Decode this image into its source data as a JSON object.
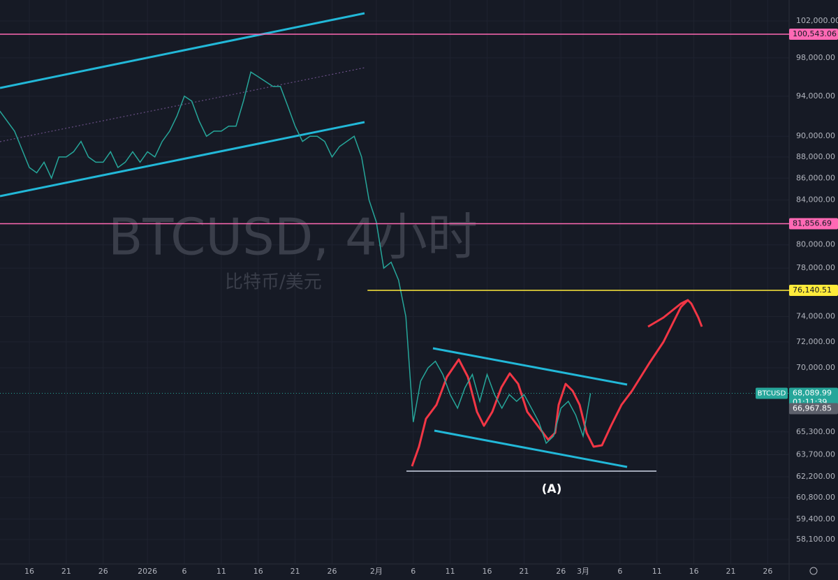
{
  "chart_data": {
    "type": "line",
    "title": "BTCUSD, 4小时",
    "subtitle": "比特币/美元",
    "annotation": "(A)",
    "log_scale": true,
    "grid": true,
    "ylim": [
      56580,
      104345
    ],
    "yticks": [
      {
        "value": 102000,
        "label": "102,000.00"
      },
      {
        "value": 98000,
        "label": "98,000.00"
      },
      {
        "value": 94000,
        "label": "94,000.00"
      },
      {
        "value": 90000,
        "label": "90,000.00"
      },
      {
        "value": 88000,
        "label": "88,000.00"
      },
      {
        "value": 86000,
        "label": "86,000.00"
      },
      {
        "value": 84000,
        "label": "84,000.00"
      },
      {
        "value": 80000,
        "label": "80,000.00"
      },
      {
        "value": 78000,
        "label": "78,000.00"
      },
      {
        "value": 74000,
        "label": "74,000.00"
      },
      {
        "value": 72000,
        "label": "72,000.00"
      },
      {
        "value": 70000,
        "label": "70,000.00"
      },
      {
        "value": 65300,
        "label": "65,300.00"
      },
      {
        "value": 63700,
        "label": "63,700.00"
      },
      {
        "value": 62200,
        "label": "62,200.00"
      },
      {
        "value": 60800,
        "label": "60,800.00"
      },
      {
        "value": 59400,
        "label": "59,400.00"
      },
      {
        "value": 58100,
        "label": "58,100.00"
      }
    ],
    "xlim": [
      -3.97,
      102.9
    ],
    "xticks": [
      {
        "value": 0,
        "label": "16"
      },
      {
        "value": 5,
        "label": "21"
      },
      {
        "value": 10,
        "label": "26"
      },
      {
        "value": 16,
        "label": "2026"
      },
      {
        "value": 21,
        "label": "6"
      },
      {
        "value": 26,
        "label": "11"
      },
      {
        "value": 31,
        "label": "16"
      },
      {
        "value": 36,
        "label": "21"
      },
      {
        "value": 41,
        "label": "26"
      },
      {
        "value": 47,
        "label": "2月"
      },
      {
        "value": 52,
        "label": "6"
      },
      {
        "value": 57,
        "label": "11"
      },
      {
        "value": 62,
        "label": "16"
      },
      {
        "value": 67,
        "label": "21"
      },
      {
        "value": 72,
        "label": "26"
      },
      {
        "value": 75,
        "label": "3月"
      },
      {
        "value": 80,
        "label": "6"
      },
      {
        "value": 85,
        "label": "11"
      },
      {
        "value": 90,
        "label": "16"
      },
      {
        "value": 95,
        "label": "21"
      },
      {
        "value": 100,
        "label": "26"
      }
    ],
    "x": [
      -4,
      -2,
      0,
      1,
      2,
      3,
      4,
      5,
      6,
      7,
      8,
      9,
      10,
      11,
      12,
      13,
      14,
      15,
      16,
      17,
      18,
      19,
      20,
      21,
      22,
      23,
      24,
      25,
      26,
      27,
      28,
      29,
      30,
      31,
      32,
      33,
      34,
      35,
      36,
      37,
      38,
      39,
      40,
      41,
      42,
      43,
      44,
      45,
      46,
      47,
      48,
      49,
      50,
      51,
      52,
      53,
      54,
      55,
      56,
      57,
      58,
      59,
      60,
      61,
      62,
      63,
      64,
      65,
      66,
      67,
      68,
      69,
      70,
      71,
      72,
      73,
      74,
      75,
      76
    ],
    "series": [
      {
        "name": "BTCUSD",
        "color": "#26a69a",
        "values": [
          92500,
          90500,
          87000,
          86500,
          87500,
          86000,
          88000,
          88000,
          88500,
          89500,
          88000,
          87500,
          87500,
          88500,
          87000,
          87500,
          88500,
          87500,
          88500,
          88000,
          89500,
          90500,
          92000,
          94000,
          93500,
          91500,
          90000,
          90500,
          90500,
          91000,
          91000,
          93500,
          96500,
          96000,
          95500,
          95000,
          95000,
          93000,
          91000,
          89500,
          90000,
          90000,
          89500,
          88000,
          89000,
          89500,
          90000,
          88000,
          84000,
          82000,
          78000,
          78500,
          77000,
          74000,
          66000,
          69000,
          70000,
          70500,
          69500,
          68000,
          67000,
          68500,
          69500,
          67500,
          69500,
          68000,
          67000,
          68000,
          67500,
          68000,
          67000,
          66000,
          64500,
          65000,
          67000,
          67500,
          66500,
          65000,
          68089.99
        ]
      }
    ],
    "hlines": [
      {
        "value": 100543.06,
        "label": "100,543.06",
        "color": "#ff69b4"
      },
      {
        "value": 81856.69,
        "label": "81,856.69",
        "color": "#ff69b4"
      },
      {
        "value": 76140.51,
        "label": "76,140.51",
        "color": "#ffeb3b",
        "from": 45.8
      }
    ],
    "last_price": {
      "value": 68089.99,
      "label": "68,089.99",
      "symbol": "BTCUSD",
      "countdown": "01:11:39",
      "color": "#26a69a"
    },
    "marker": {
      "value": 66967.85,
      "label": "66,967.85",
      "color": "#5d606b"
    }
  }
}
